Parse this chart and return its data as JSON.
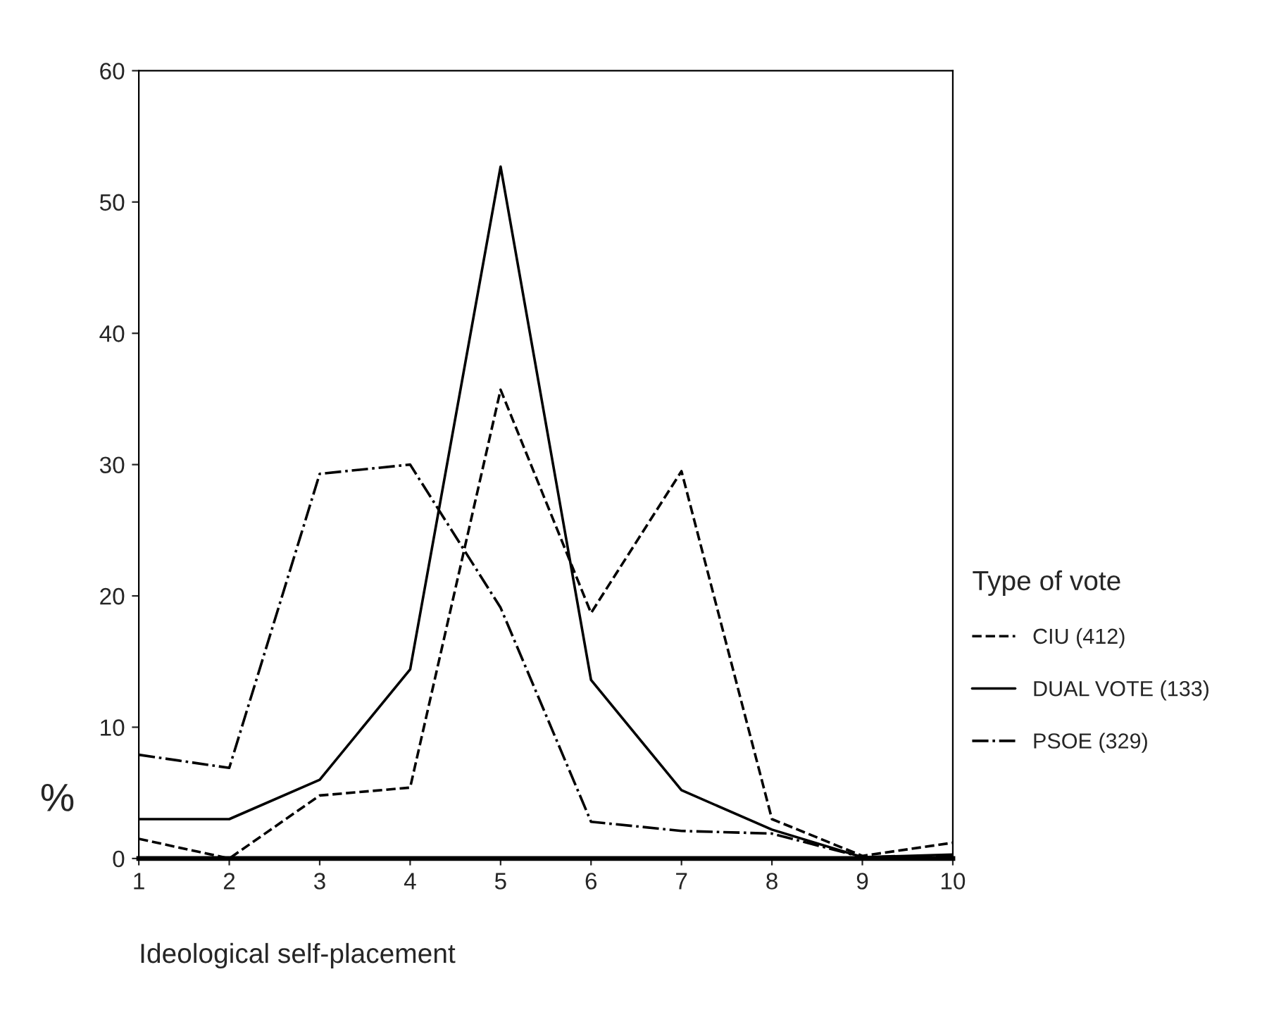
{
  "chart_data": {
    "type": "line",
    "xlabel": "Ideological self-placement",
    "ylabel": "%",
    "legend_title": "Type of vote",
    "legend": "right",
    "x": [
      1,
      2,
      3,
      4,
      5,
      6,
      7,
      8,
      9,
      10
    ],
    "xlim": [
      1,
      10
    ],
    "xticks": [
      1,
      2,
      3,
      4,
      5,
      6,
      7,
      8,
      9,
      10
    ],
    "ylim": [
      0,
      60
    ],
    "yticks": [
      0,
      10,
      20,
      30,
      40,
      50,
      60
    ],
    "grid": false,
    "series": [
      {
        "name": "CIU (412)",
        "color": "#000000",
        "line_style": "dashed",
        "values": [
          1.5,
          0,
          4.8,
          5.4,
          35.7,
          18.7,
          29.5,
          3.0,
          0.2,
          1.2
        ]
      },
      {
        "name": "DUAL VOTE (133)",
        "color": "#000000",
        "line_style": "solid",
        "values": [
          3.0,
          3.0,
          6.0,
          14.4,
          52.7,
          13.6,
          5.2,
          2.2,
          0.1,
          0.3
        ]
      },
      {
        "name": "PSOE (329)",
        "color": "#000000",
        "line_style": "dashdot",
        "values": [
          7.9,
          6.9,
          29.3,
          30.0,
          19.1,
          2.8,
          2.1,
          1.9,
          0.1,
          0.2
        ]
      }
    ]
  }
}
